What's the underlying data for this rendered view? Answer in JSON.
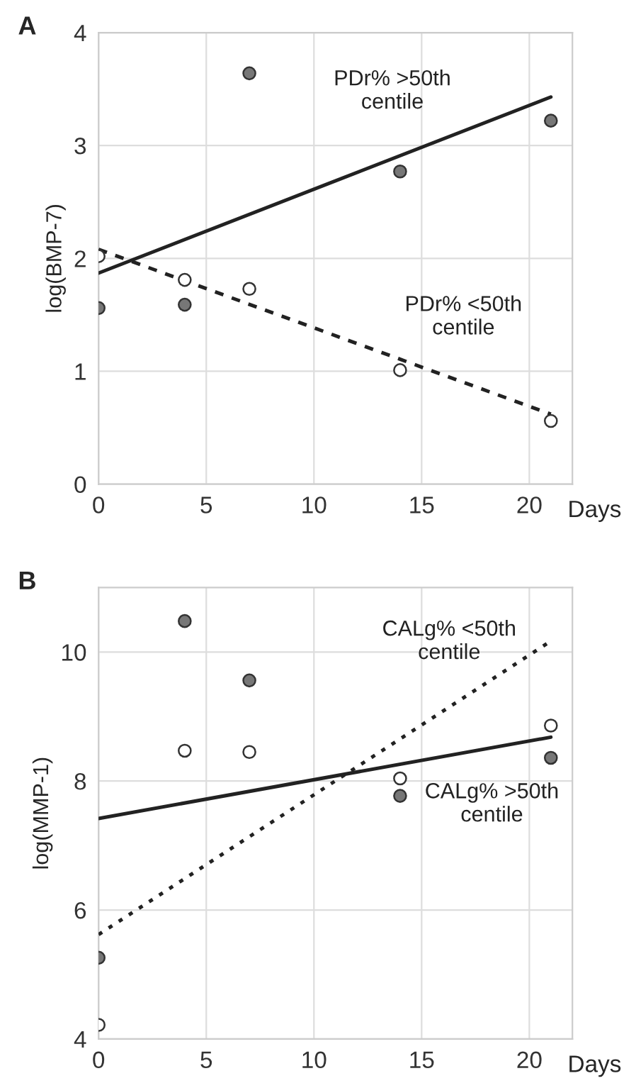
{
  "chart_data": [
    {
      "type": "scatter",
      "title": "A",
      "xlabel": "Days",
      "ylabel": "log(BMP-7)",
      "xlim": [
        0,
        22
      ],
      "xticks": [
        0,
        5,
        10,
        15,
        20
      ],
      "ylim": [
        0,
        4
      ],
      "yticks": [
        0,
        1,
        2,
        3,
        4
      ],
      "grid": true,
      "marker": "circle",
      "series": [
        {
          "color": "#777777",
          "x": [
            0,
            4,
            7,
            14,
            21
          ],
          "values": [
            1.56,
            1.59,
            3.64,
            2.77,
            3.22
          ]
        },
        {
          "color": "#ffffff",
          "x": [
            0,
            4,
            7,
            14,
            21
          ],
          "values": [
            2.02,
            1.81,
            1.73,
            1.01,
            0.56
          ]
        },
        {
          "type": "line",
          "color": "#222222",
          "line_style": "solid",
          "marker": "none",
          "x": [
            0,
            21
          ],
          "values": [
            1.87,
            3.43
          ]
        },
        {
          "type": "line",
          "color": "#222222",
          "line_style": "dashed",
          "marker": "none",
          "x": [
            0,
            21
          ],
          "values": [
            2.08,
            0.62
          ]
        }
      ],
      "annotations": [
        "PDr% >50th\ncentile",
        "PDr% <50th\ncentile"
      ]
    },
    {
      "type": "scatter",
      "title": "B",
      "xlabel": "Days",
      "ylabel": "log(MMP-1)",
      "xlim": [
        0,
        22
      ],
      "xticks": [
        0,
        5,
        10,
        15,
        20
      ],
      "ylim": [
        4,
        11
      ],
      "yticks": [
        4,
        6,
        8,
        10
      ],
      "grid": true,
      "marker": "circle",
      "series": [
        {
          "color": "#777777",
          "x": [
            0,
            4,
            7,
            14,
            21
          ],
          "values": [
            5.26,
            10.48,
            9.56,
            7.77,
            8.36
          ]
        },
        {
          "color": "#ffffff",
          "x": [
            0,
            4,
            7,
            14,
            21
          ],
          "values": [
            4.22,
            8.47,
            8.45,
            8.04,
            8.86
          ]
        },
        {
          "type": "line",
          "color": "#222222",
          "line_style": "solid",
          "marker": "none",
          "x": [
            0,
            21
          ],
          "values": [
            7.42,
            8.68
          ]
        },
        {
          "type": "line",
          "color": "#222222",
          "line_style": "dotted",
          "marker": "none",
          "x": [
            0,
            21
          ],
          "values": [
            5.62,
            10.17
          ]
        }
      ],
      "annotations": [
        "CALg% <50th\ncentile",
        "CALg% >50th\ncentile"
      ]
    }
  ]
}
